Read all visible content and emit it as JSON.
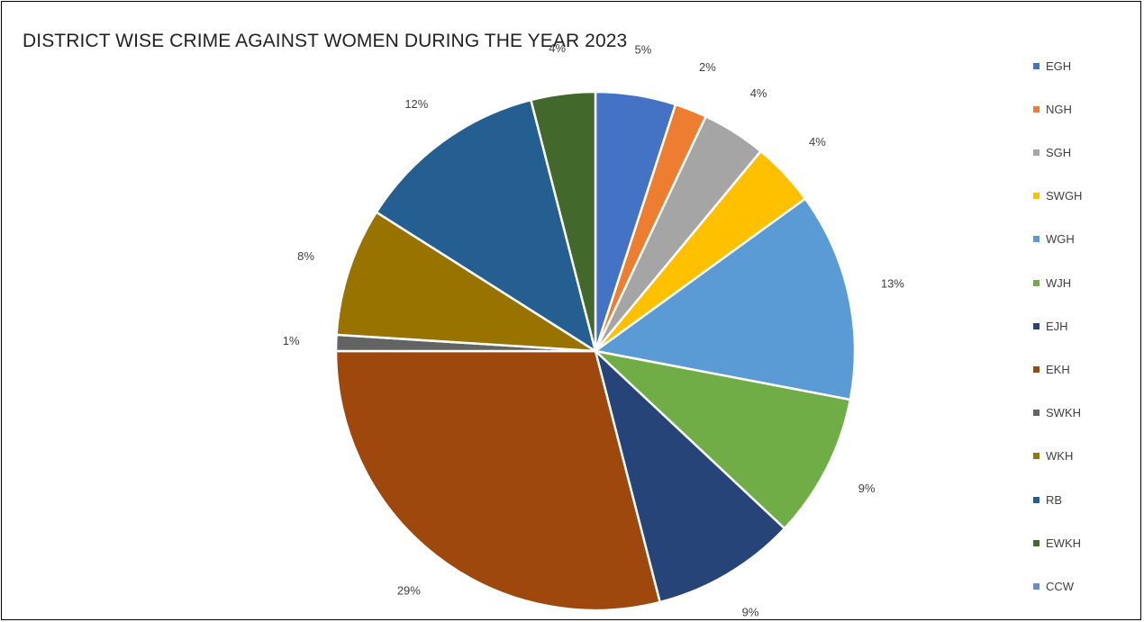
{
  "chart_data": {
    "type": "pie",
    "title": "DISTRICT WISE CRIME AGAINST WOMEN DURING THE YEAR 2023",
    "categories": [
      "EGH",
      "NGH",
      "SGH",
      "SWGH",
      "WGH",
      "WJH",
      "EJH",
      "EKH",
      "SWKH",
      "WKH",
      "RB",
      "EWKH",
      "CCW"
    ],
    "values": [
      5,
      2,
      4,
      4,
      13,
      9,
      9,
      29,
      1,
      8,
      12,
      4,
      0
    ],
    "data_labels": [
      "5%",
      "2%",
      "4%",
      "4%",
      "13%",
      "9%",
      "9%",
      "29%",
      "1%",
      "8%",
      "12%",
      "4%",
      ""
    ],
    "colors": [
      "#4472C4",
      "#ED7D31",
      "#A5A5A5",
      "#FFC000",
      "#5B9BD5",
      "#70AD47",
      "#264478",
      "#9E480E",
      "#636363",
      "#997300",
      "#255E91",
      "#43682B",
      "#698ED0"
    ],
    "legend_position": "right"
  }
}
